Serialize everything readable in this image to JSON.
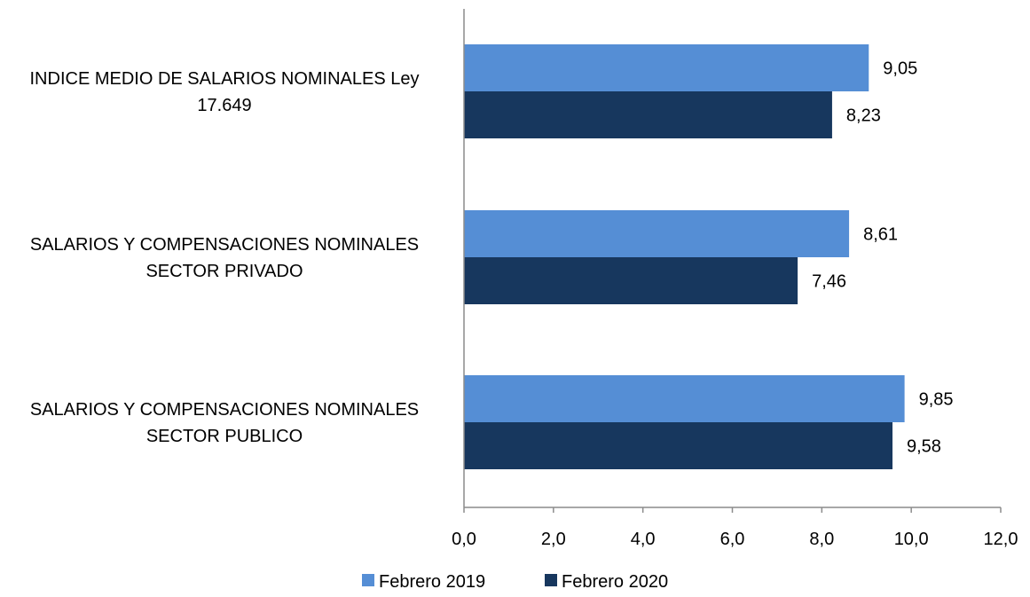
{
  "chart_data": {
    "type": "bar",
    "orientation": "horizontal",
    "categories": [
      [
        "INDICE MEDIO DE SALARIOS NOMINALES Ley",
        "17.649"
      ],
      [
        "SALARIOS  Y COMPENSACIONES NOMINALES",
        "SECTOR PRIVADO"
      ],
      [
        "SALARIOS Y COMPENSACIONES NOMINALES",
        "SECTOR PUBLICO"
      ]
    ],
    "series": [
      {
        "name": "Febrero  2019",
        "color": "#558ed5",
        "values": [
          9.05,
          8.61,
          9.85
        ],
        "labels": [
          "9,05",
          "8,61",
          "9,85"
        ]
      },
      {
        "name": "Febrero 2020",
        "color": "#17375e",
        "values": [
          8.23,
          7.46,
          9.58
        ],
        "labels": [
          "8,23",
          "7,46",
          "9,58"
        ]
      }
    ],
    "xlim": [
      0,
      12
    ],
    "xticks": [
      0,
      2,
      4,
      6,
      8,
      10,
      12
    ],
    "xtick_labels": [
      "0,0",
      "2,0",
      "4,0",
      "6,0",
      "8,0",
      "10,0",
      "12,0"
    ],
    "grid": false,
    "legend_position": "bottom",
    "title": "",
    "xlabel": "",
    "ylabel": ""
  }
}
